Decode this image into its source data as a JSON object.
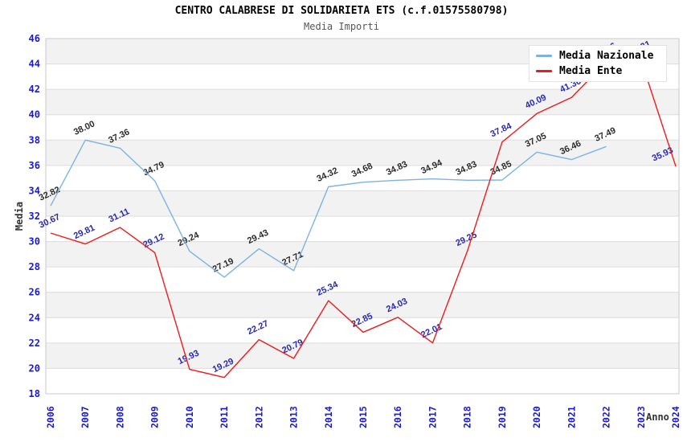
{
  "header": {
    "title": "CENTRO CALABRESE DI SOLIDARIETA ETS (c.f.01575580798)",
    "subtitle": "Media Importi"
  },
  "legend": {
    "position": "top-right",
    "items": [
      {
        "label": "Media Nazionale",
        "color": "#7eb2e2"
      },
      {
        "label": "Media Ente",
        "color": "#ea1c1c"
      }
    ]
  },
  "axes": {
    "x_title": "Anno",
    "y_title": "Media",
    "tick_color": "#1a1acd",
    "axis_title_color": "#333333"
  },
  "chart_data": {
    "type": "line",
    "title": "CENTRO CALABRESE DI SOLIDARIETA ETS (c.f.01575580798)",
    "subtitle": "Media Importi",
    "xlabel": "Anno",
    "ylabel": "Media",
    "x": [
      2006,
      2007,
      2008,
      2009,
      2010,
      2011,
      2012,
      2013,
      2014,
      2015,
      2016,
      2017,
      2018,
      2019,
      2020,
      2021,
      2022,
      2023,
      2024
    ],
    "series": [
      {
        "name": "Media Nazionale",
        "color": "#7eb2e2",
        "label_color": "#2b2b2b",
        "values": [
          32.82,
          38.0,
          37.36,
          34.79,
          29.24,
          27.19,
          29.43,
          27.71,
          34.32,
          34.68,
          34.83,
          34.94,
          34.83,
          34.85,
          37.05,
          36.46,
          37.49,
          null,
          null
        ]
      },
      {
        "name": "Media Ente",
        "color": "#ea1c1c",
        "label_color": "#2929ad",
        "values": [
          30.67,
          29.81,
          31.11,
          29.12,
          19.93,
          19.29,
          22.27,
          20.79,
          25.34,
          22.85,
          24.03,
          22.01,
          29.25,
          37.84,
          40.09,
          41.36,
          44.16,
          44.31,
          35.93
        ]
      }
    ],
    "ylim": [
      18,
      46
    ],
    "ytick_step": 2,
    "grid": "horizontal",
    "band_fill": "#f2f2f2",
    "grid_color": "#dcdcdc",
    "plot_border_color": "#c8c8c8",
    "legend_position": "top-right"
  }
}
